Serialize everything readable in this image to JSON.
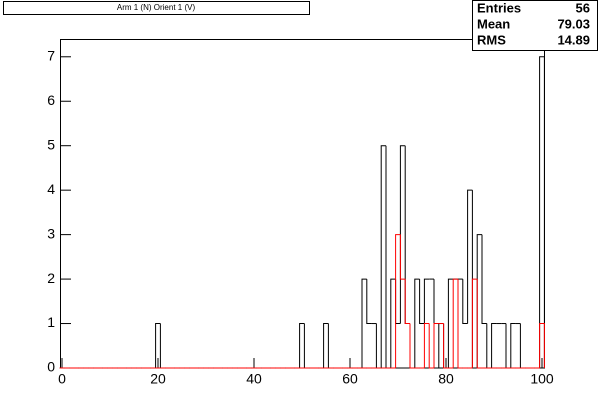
{
  "chart_data": {
    "type": "histogram",
    "title": "Arm 1 (N) Orient 1 (V)",
    "bins": [
      -0.5,
      0.5,
      1.5,
      2.5,
      3.5,
      4.5,
      5.5,
      6.5,
      7.5,
      8.5,
      9.5,
      10.5,
      11.5,
      12.5,
      13.5,
      14.5,
      15.5,
      16.5,
      17.5,
      18.5,
      19.5,
      20.5,
      21.5,
      22.5,
      23.5,
      24.5,
      25.5,
      26.5,
      27.5,
      28.5,
      29.5,
      30.5,
      31.5,
      32.5,
      33.5,
      34.5,
      35.5,
      36.5,
      37.5,
      38.5,
      39.5,
      40.5,
      41.5,
      42.5,
      43.5,
      44.5,
      45.5,
      46.5,
      47.5,
      48.5,
      49.5,
      50.5,
      51.5,
      52.5,
      53.5,
      54.5,
      55.5,
      56.5,
      57.5,
      58.5,
      59.5,
      60.5,
      61.5,
      62.5,
      63.5,
      64.5,
      65.5,
      66.5,
      67.5,
      68.5,
      69.5,
      70.5,
      71.5,
      72.5,
      73.5,
      74.5,
      75.5,
      76.5,
      77.5,
      78.5,
      79.5,
      80.5,
      81.5,
      82.5,
      83.5,
      84.5,
      85.5,
      86.5,
      87.5,
      88.5,
      89.5,
      90.5,
      91.5,
      92.5,
      93.5,
      94.5,
      95.5,
      96.5,
      97.5,
      98.5,
      99.5,
      100.5
    ],
    "series": [
      {
        "color": "#000000",
        "values": [
          0,
          0,
          0,
          0,
          0,
          0,
          0,
          0,
          0,
          0,
          0,
          0,
          0,
          0,
          0,
          0,
          0,
          0,
          0,
          0,
          1,
          0,
          0,
          0,
          0,
          0,
          0,
          0,
          0,
          0,
          0,
          0,
          0,
          0,
          0,
          0,
          0,
          0,
          0,
          0,
          0,
          0,
          0,
          0,
          0,
          0,
          0,
          0,
          0,
          0,
          1,
          0,
          0,
          0,
          0,
          1,
          0,
          0,
          0,
          0,
          0,
          0,
          0,
          2,
          1,
          1,
          0,
          5,
          0,
          2,
          1,
          5,
          1,
          0,
          2,
          1,
          2,
          2,
          0,
          1,
          0,
          2,
          2,
          2,
          1,
          4,
          0,
          3,
          1,
          0,
          1,
          1,
          1,
          0,
          1,
          1,
          0,
          0,
          0,
          0,
          7
        ]
      },
      {
        "color": "#ff0000",
        "values": [
          0,
          0,
          0,
          0,
          0,
          0,
          0,
          0,
          0,
          0,
          0,
          0,
          0,
          0,
          0,
          0,
          0,
          0,
          0,
          0,
          0,
          0,
          0,
          0,
          0,
          0,
          0,
          0,
          0,
          0,
          0,
          0,
          0,
          0,
          0,
          0,
          0,
          0,
          0,
          0,
          0,
          0,
          0,
          0,
          0,
          0,
          0,
          0,
          0,
          0,
          0,
          0,
          0,
          0,
          0,
          0,
          0,
          0,
          0,
          0,
          0,
          0,
          0,
          0,
          0,
          0,
          0,
          0,
          0,
          0,
          3,
          2,
          1,
          0,
          0,
          0,
          1,
          0,
          1,
          1,
          0,
          0,
          2,
          0,
          0,
          0,
          2,
          0,
          0,
          0,
          0,
          0,
          0,
          0,
          0,
          0,
          0,
          0,
          0,
          0,
          1
        ]
      }
    ],
    "xlim": [
      -0.5,
      100.5
    ],
    "xticks": [
      0,
      20,
      40,
      60,
      80,
      100
    ],
    "ylim": [
      0,
      7.4
    ],
    "yticks": [
      0,
      1,
      2,
      3,
      4,
      5,
      6,
      7
    ],
    "stats": {
      "labels": [
        "Entries",
        "Mean",
        "RMS"
      ],
      "values": [
        56,
        79.03,
        14.89
      ]
    }
  }
}
